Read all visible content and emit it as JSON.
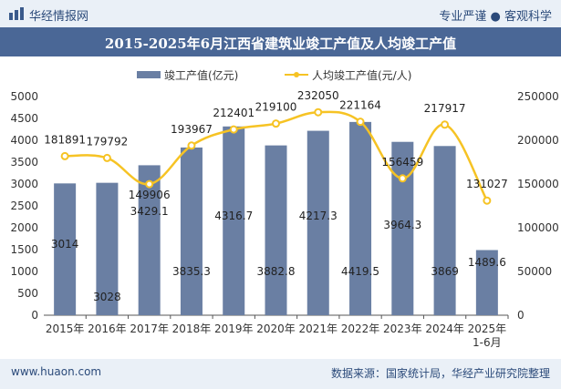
{
  "header": {
    "brand": "华经情报网",
    "tagline": "专业严谨 ● 客观科学"
  },
  "footer": {
    "site": "www.huaon.com",
    "source": "数据来源：国家统计局，华经产业研究院整理"
  },
  "colors": {
    "bar": "#6a7fa3",
    "line": "#f6c324",
    "title_bg": "#4a6796",
    "band_bg": "#eaf0f7"
  },
  "chart_data": {
    "type": "bar",
    "title": "2015-2025年6月江西省建筑业竣工产值及人均竣工产值",
    "categories": [
      "2015年",
      "2016年",
      "2017年",
      "2018年",
      "2019年",
      "2020年",
      "2021年",
      "2022年",
      "2023年",
      "2024年",
      "2025年\n1-6月"
    ],
    "legend_position": "top-center",
    "series": [
      {
        "name": "竣工产值(亿元)",
        "type": "bar",
        "axis": "left",
        "values": [
          3014,
          3028,
          3429.1,
          3835.3,
          4316.7,
          3882.8,
          4217.3,
          4419.5,
          3964.3,
          3869,
          1489.6
        ],
        "labels": [
          "3014",
          "3028",
          "3429.1",
          "3835.3",
          "4316.7",
          "3882.8",
          "4217.3",
          "4419.5",
          "3964.3",
          "3869",
          "1489.6"
        ]
      },
      {
        "name": "人均竣工产值(元/人)",
        "type": "line",
        "axis": "right",
        "values": [
          181891,
          179792,
          149906,
          193967,
          212401,
          219100,
          232050,
          221164,
          156459,
          217917,
          131027
        ],
        "labels": [
          "181891",
          "179792",
          "149906",
          "193967",
          "212401",
          "219100",
          "232050",
          "221164",
          "156459",
          "217917",
          "131027"
        ]
      }
    ],
    "y_left": {
      "min": 0,
      "max": 5000,
      "ticks": [
        "0",
        "500",
        "1000",
        "1500",
        "2000",
        "2500",
        "3000",
        "3500",
        "4000",
        "4500",
        "5000"
      ]
    },
    "y_right": {
      "min": 0,
      "max": 250000,
      "ticks": [
        "0",
        "50000",
        "100000",
        "150000",
        "200000",
        "250000"
      ]
    },
    "grid": false
  }
}
